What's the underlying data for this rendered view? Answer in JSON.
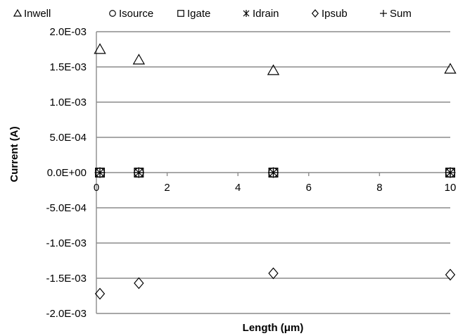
{
  "chart_data": {
    "type": "scatter",
    "title": "",
    "xlabel": "Length (μm)",
    "ylabel": "Current (A)",
    "xlim": [
      0,
      10
    ],
    "ylim": [
      -0.002,
      0.002
    ],
    "grid": true,
    "legend_position": "top",
    "x_ticks": [
      0,
      2,
      4,
      6,
      8,
      10
    ],
    "x_tick_labels": [
      "0",
      "2",
      "4",
      "6",
      "8",
      "10"
    ],
    "y_ticks": [
      0.002,
      0.0015,
      0.001,
      0.0005,
      0,
      -0.0005,
      -0.001,
      -0.0015,
      -0.002
    ],
    "y_tick_labels": [
      "2.0E-03",
      "1.5E-03",
      "1.0E-03",
      "5.0E-04",
      "0.0E+00",
      "-5.0E-04",
      "-1.0E-03",
      "-1.5E-03",
      "-2.0E-03"
    ],
    "x": [
      0.1,
      1.2,
      5,
      10
    ],
    "series": [
      {
        "name": "Inwell",
        "marker": "triangle",
        "values": [
          0.00175,
          0.0016,
          0.00145,
          0.00147
        ]
      },
      {
        "name": "Isource",
        "marker": "circle",
        "values": [
          0,
          0,
          0,
          0
        ]
      },
      {
        "name": "Igate",
        "marker": "square",
        "values": [
          0,
          0,
          0,
          0
        ]
      },
      {
        "name": "Idrain",
        "marker": "asterisk",
        "values": [
          0,
          0,
          0,
          0
        ]
      },
      {
        "name": "Ipsub",
        "marker": "diamond",
        "values": [
          -0.00172,
          -0.00157,
          -0.00143,
          -0.00145
        ]
      },
      {
        "name": "Sum",
        "marker": "plus",
        "values": [
          0,
          0,
          0,
          0
        ]
      }
    ]
  }
}
